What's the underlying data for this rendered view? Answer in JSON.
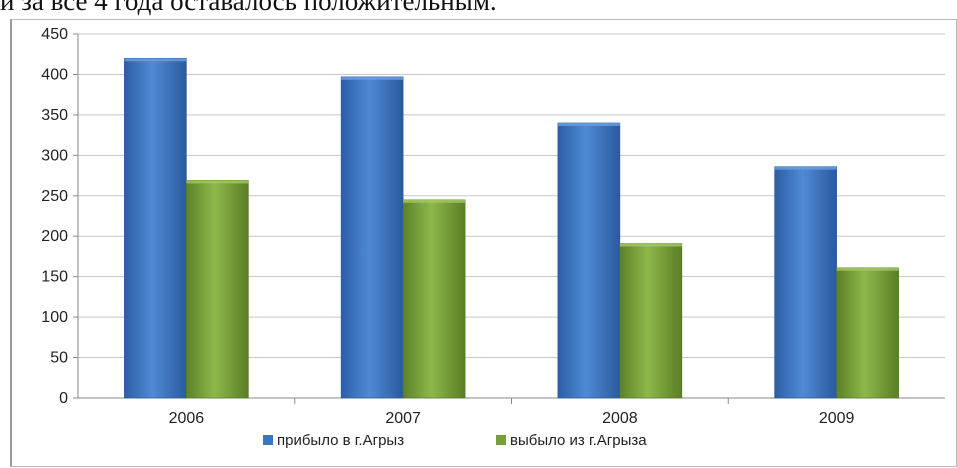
{
  "page": {
    "header_text": "и за все 4 года оставалось положительным."
  },
  "chart_data": {
    "type": "bar",
    "title": "",
    "xlabel": "",
    "ylabel": "",
    "categories": [
      "2006",
      "2007",
      "2008",
      "2009"
    ],
    "ylim": [
      0,
      450
    ],
    "yticks": [
      0,
      50,
      100,
      150,
      200,
      250,
      300,
      350,
      400,
      450
    ],
    "grid": true,
    "legend_position": "bottom",
    "series": [
      {
        "name": "прибыло в г.Агрыз",
        "values": [
          420,
          397,
          340,
          286
        ],
        "color": "#3a75c4"
      },
      {
        "name": "выбыло из г.Агрыза",
        "values": [
          269,
          245,
          191,
          161
        ],
        "color": "#77a03a"
      }
    ]
  }
}
